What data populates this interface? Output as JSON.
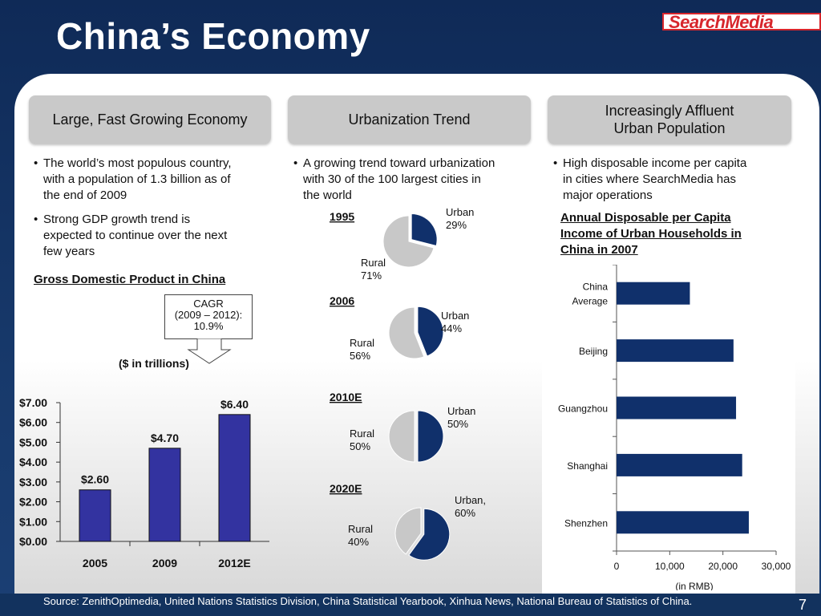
{
  "title": "China’s Economy",
  "logo_text": "SearchMedia",
  "headers": {
    "h1": "Large, Fast Growing Economy",
    "h2": "Urbanization Trend",
    "h3_line1": "Increasingly Affluent",
    "h3_line2": "Urban Population"
  },
  "col1": {
    "bullet1": [
      "The world’s most populous country,",
      "with a population of 1.3 billion as of",
      "the end of 2009"
    ],
    "bullet2": [
      "Strong GDP growth trend is",
      "expected to continue over the next",
      "few years"
    ],
    "chart_title": "Gross Domestic Product in China",
    "cagr_line1": "CAGR",
    "cagr_line2": "(2009 – 2012):",
    "cagr_line3": "10.9%",
    "units": "($ in trillions)"
  },
  "col2": {
    "bullet1": [
      "A growing trend toward urbanization",
      "with 30 of the 100 largest cities in",
      "the world"
    ]
  },
  "col3": {
    "bullet1": [
      "High disposable income per capita",
      "in cities where SearchMedia has",
      "major operations"
    ],
    "chart_title": [
      "Annual Disposable per Capita",
      "Income of Urban Households in",
      "China in 2007"
    ]
  },
  "source": "Source: ZenithOptimedia, United Nations Statistics Division, China Statistical Yearbook, Xinhua News, National Bureau of Statistics of China.",
  "page_number": "7",
  "colors": {
    "navy": "#0f2a57",
    "bar_purple": "#3333a0",
    "bar_navy": "#10306b",
    "pie_urban": "#10306b",
    "pie_rural": "#c8c8c8"
  },
  "chart_data": [
    {
      "type": "bar",
      "title": "Gross Domestic Product in China",
      "categories": [
        "2005",
        "2009",
        "2012E"
      ],
      "values": [
        2.6,
        4.7,
        6.4
      ],
      "data_labels": [
        "$2.60",
        "$4.70",
        "$6.40"
      ],
      "ylim": [
        0,
        7
      ],
      "yticks": [
        "$0.00",
        "$1.00",
        "$2.00",
        "$3.00",
        "$4.00",
        "$5.00",
        "$6.00",
        "$7.00"
      ],
      "grid": false
    },
    {
      "type": "pie",
      "title": "1995",
      "slices": [
        {
          "label_lines": [
            "Urban",
            "29%"
          ],
          "value": 29
        },
        {
          "label_lines": [
            "Rural",
            "71%"
          ],
          "value": 71
        }
      ]
    },
    {
      "type": "pie",
      "title": "2006",
      "slices": [
        {
          "label_lines": [
            "Urban",
            "44%"
          ],
          "value": 44
        },
        {
          "label_lines": [
            "Rural",
            "56%"
          ],
          "value": 56
        }
      ]
    },
    {
      "type": "pie",
      "title": "2010E",
      "slices": [
        {
          "label_lines": [
            "Urban",
            "50%"
          ],
          "value": 50
        },
        {
          "label_lines": [
            "Rural",
            "50%"
          ],
          "value": 50
        }
      ]
    },
    {
      "type": "pie",
      "title": "2020E",
      "slices": [
        {
          "label_lines": [
            "Urban,",
            "60%"
          ],
          "value": 60
        },
        {
          "label_lines": [
            "Rural",
            "40%"
          ],
          "value": 40
        }
      ]
    },
    {
      "type": "bar",
      "orientation": "horizontal",
      "title": "Annual Disposable per Capita Income of Urban Households in China in 2007",
      "categories": [
        [
          "China",
          "Average"
        ],
        [
          "Beijing"
        ],
        [
          "Guangzhou"
        ],
        [
          "Shanghai"
        ],
        [
          "Shenzhen"
        ]
      ],
      "values": [
        13786,
        21989,
        22469,
        23623,
        24870
      ],
      "xlim": [
        0,
        30000
      ],
      "xticks": [
        "0",
        "10,000",
        "20,000",
        "30,000"
      ],
      "xlabel": "(in RMB)",
      "grid": false
    }
  ]
}
